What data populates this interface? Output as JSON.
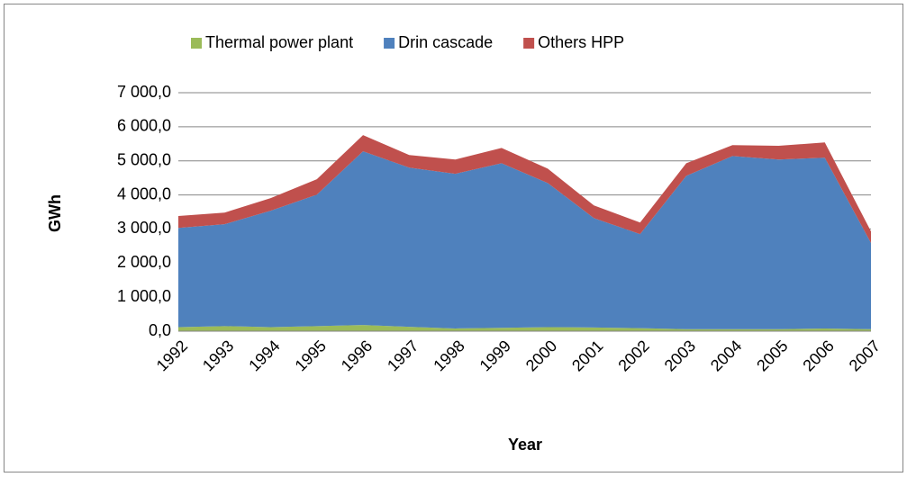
{
  "chart_data": {
    "type": "stacked-area",
    "y_label": "GWh",
    "x_label": "Year",
    "categories": [
      "1992",
      "1993",
      "1994",
      "1995",
      "1996",
      "1997",
      "1998",
      "1999",
      "2000",
      "2001",
      "2002",
      "2003",
      "2004",
      "2005",
      "2006",
      "2007"
    ],
    "series": [
      {
        "name": "Thermal power plant",
        "color": "#9bbb59",
        "values": [
          120,
          150,
          120,
          150,
          180,
          130,
          80,
          100,
          120,
          110,
          90,
          60,
          60,
          60,
          80,
          60
        ]
      },
      {
        "name": "Drin cascade",
        "color": "#4f81bd",
        "values": [
          2910,
          2990,
          3415,
          3860,
          5100,
          4670,
          4540,
          4830,
          4230,
          3210,
          2760,
          4500,
          5080,
          4980,
          5010,
          2530
        ]
      },
      {
        "name": "Others HPP",
        "color": "#c0504d",
        "values": [
          350,
          340,
          370,
          450,
          475,
          370,
          420,
          450,
          420,
          370,
          340,
          370,
          320,
          400,
          450,
          340
        ]
      }
    ],
    "ylim": [
      0,
      7000
    ],
    "yticks": [
      {
        "value": 0,
        "label": "0,0"
      },
      {
        "value": 1000,
        "label": "1 000,0"
      },
      {
        "value": 2000,
        "label": "2 000,0"
      },
      {
        "value": 3000,
        "label": "3 000,0"
      },
      {
        "value": 4000,
        "label": "4 000,0"
      },
      {
        "value": 5000,
        "label": "5 000,0"
      },
      {
        "value": 6000,
        "label": "6 000,0"
      },
      {
        "value": 7000,
        "label": "7 000,0"
      }
    ],
    "grid": true,
    "legend": "top"
  }
}
